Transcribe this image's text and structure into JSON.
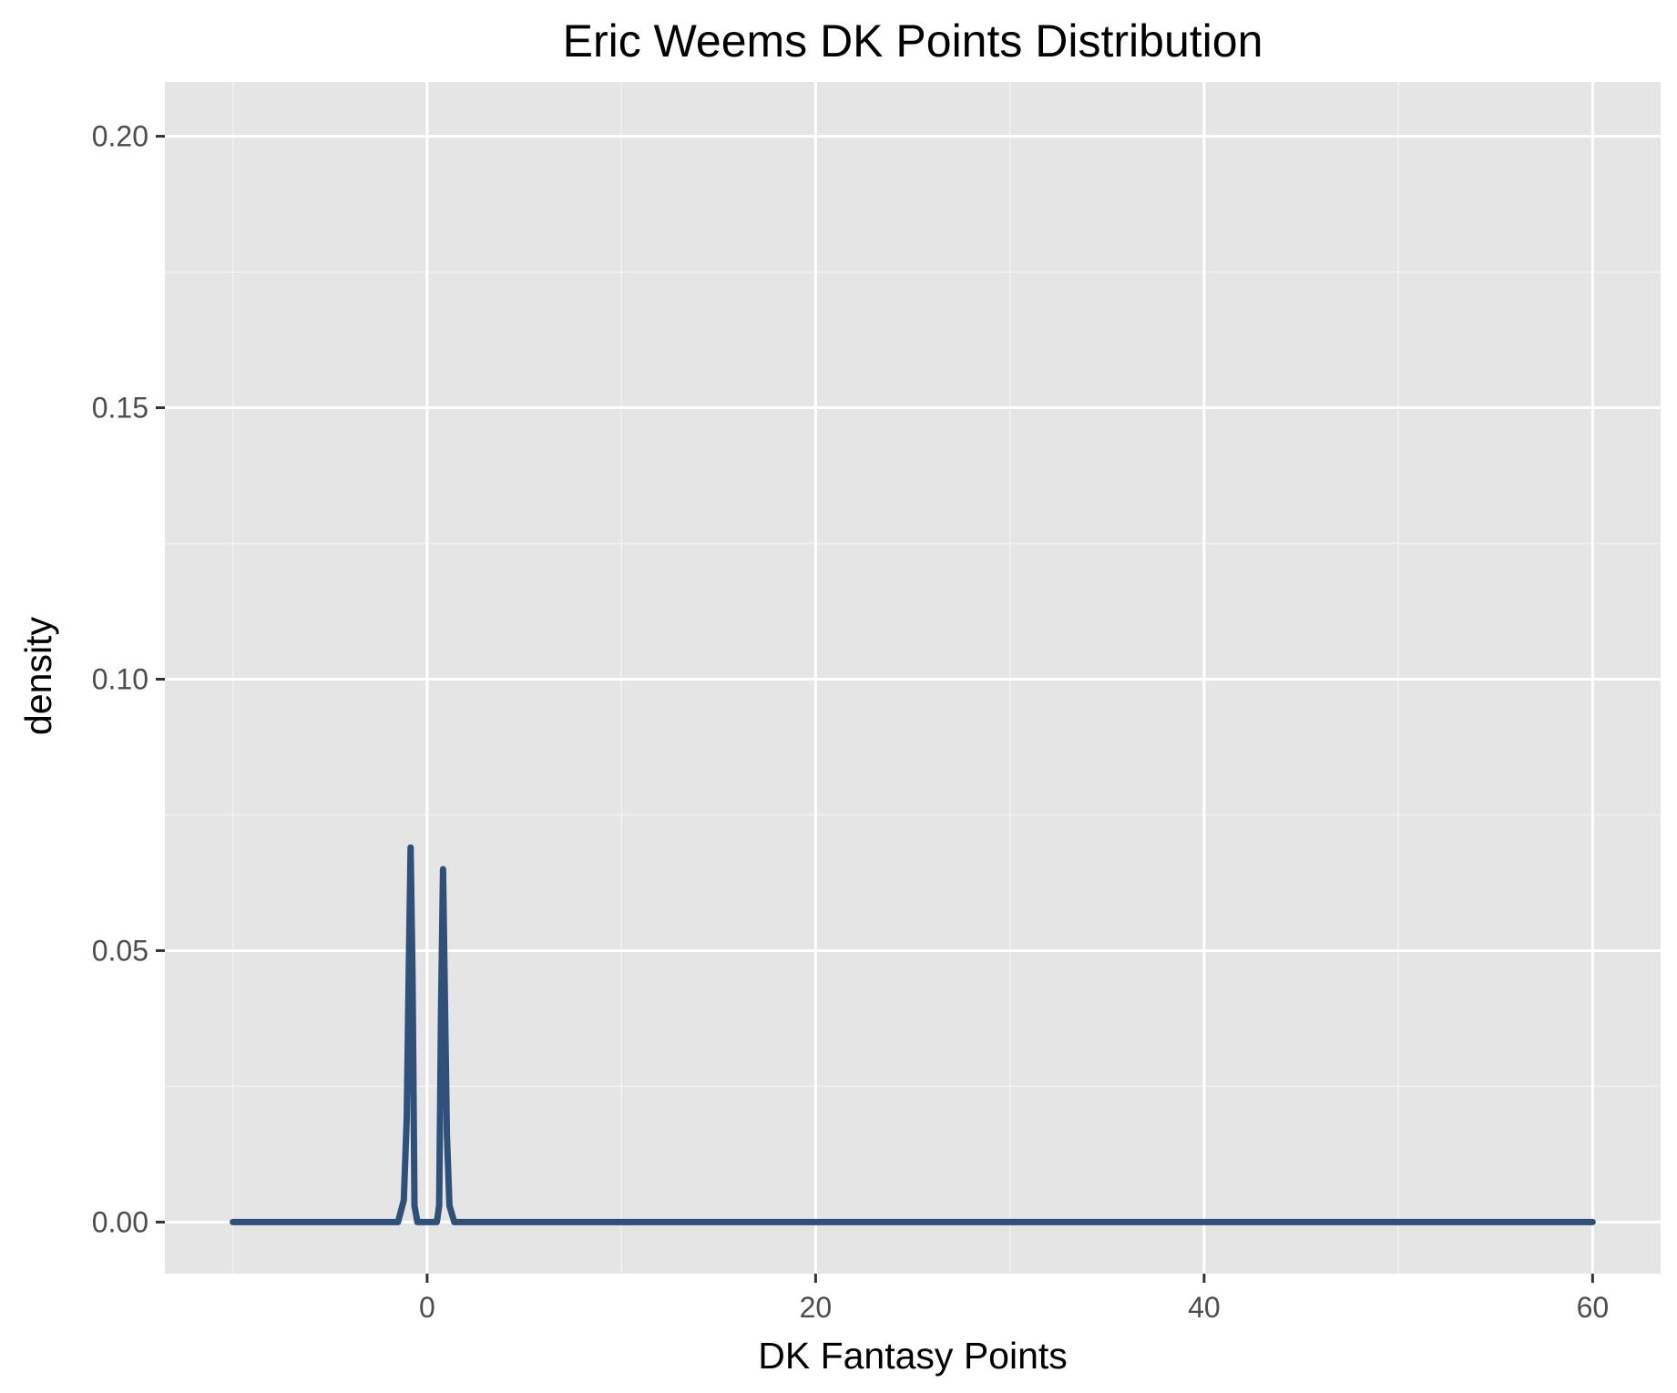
{
  "chart_data": {
    "type": "line",
    "title": "Eric Weems DK Points Distribution",
    "xlabel": "DK Fantasy Points",
    "ylabel": "density",
    "xlim": [
      -13.5,
      63.5
    ],
    "ylim": [
      -0.0095,
      0.21
    ],
    "x_ticks": [
      0,
      20,
      40,
      60
    ],
    "x_tick_labels": [
      "0",
      "20",
      "40",
      "60"
    ],
    "x_minor_ticks": [
      -10,
      10,
      30,
      50
    ],
    "y_ticks": [
      0.0,
      0.05,
      0.1,
      0.15,
      0.2
    ],
    "y_tick_labels": [
      "0.00",
      "0.05",
      "0.10",
      "0.15",
      "0.20"
    ],
    "y_minor_ticks": [
      0.025,
      0.075,
      0.125,
      0.175
    ],
    "grid": true,
    "legend": "none",
    "series": [
      {
        "x": [
          -10,
          -1.5,
          -1.2,
          -1.05,
          -0.95,
          -0.85,
          -0.75,
          -0.65,
          -0.5,
          0.5,
          0.62,
          0.72,
          0.82,
          0.92,
          1.02,
          1.15,
          1.4,
          60
        ],
        "y": [
          0,
          0,
          0.004,
          0.019,
          0.045,
          0.069,
          0.045,
          0.003,
          0,
          0,
          0.003,
          0.04,
          0.065,
          0.04,
          0.016,
          0.003,
          0,
          0
        ]
      }
    ],
    "colors": {
      "line": "#2f5078",
      "panel": "#e5e5e5",
      "grid_major": "#ffffff",
      "grid_minor": "#f2f2f2",
      "tick_mark": "#333333"
    }
  }
}
